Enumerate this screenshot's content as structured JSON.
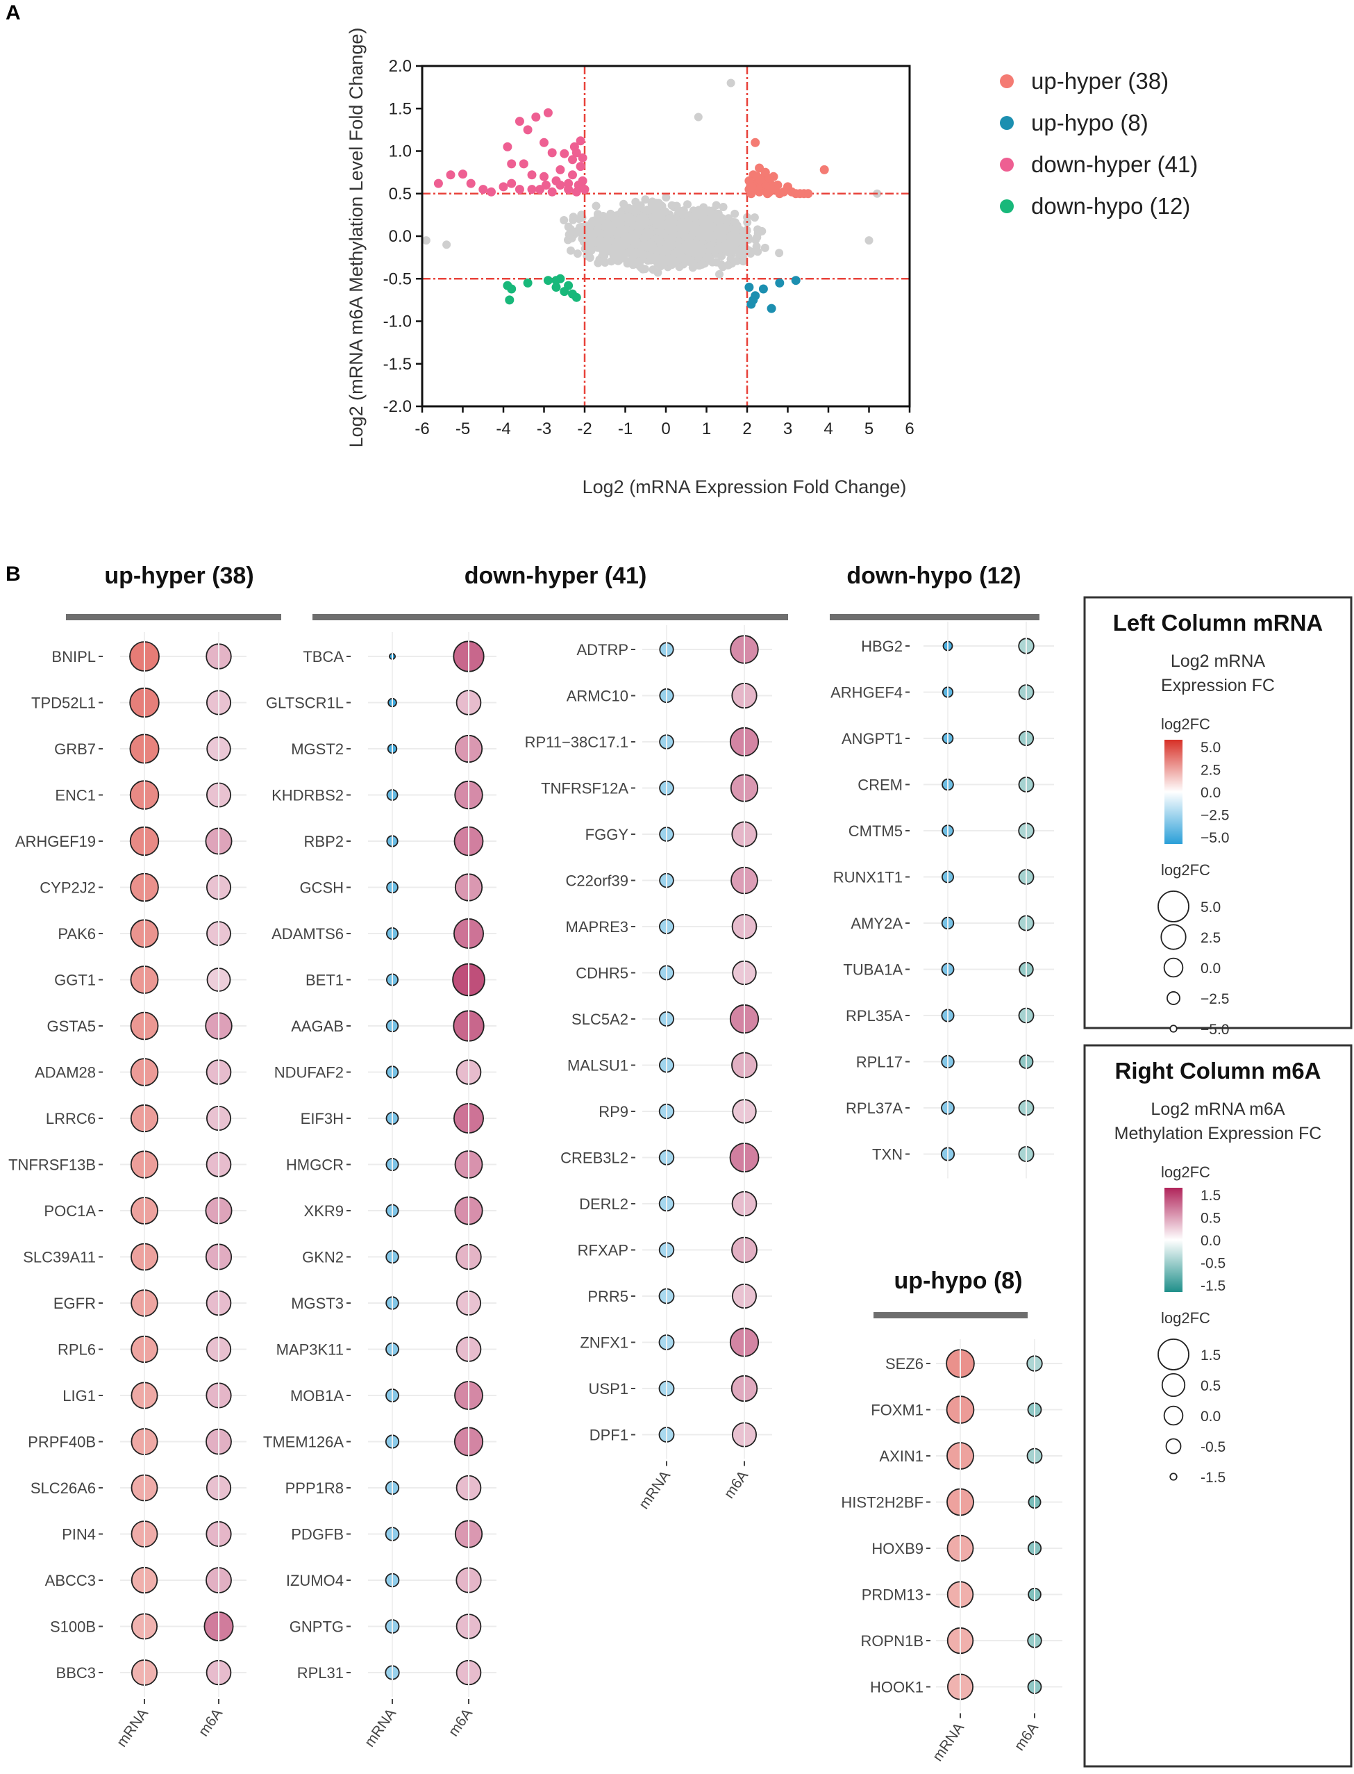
{
  "panel_a": {
    "panel_label": "A",
    "chart_data": {
      "type": "scatter",
      "title": "",
      "xlabel": "Log2 (mRNA Expression Fold Change)",
      "ylabel": "Log2 (mRNA m6A Methylation Level Fold Change)",
      "xlim": [
        -6,
        6
      ],
      "ylim": [
        -2.0,
        2.0
      ],
      "xticks": [
        -6,
        -5,
        -4,
        -3,
        -2,
        -1,
        0,
        1,
        2,
        3,
        4,
        5,
        6
      ],
      "yticks": [
        "2.0",
        "1.5",
        "1.0",
        "0.5",
        "0.0",
        "-0.5",
        "-1.0",
        "-1.5",
        "-2.0"
      ],
      "thresholds": {
        "x": [
          -2,
          2
        ],
        "y": [
          -0.5,
          0.5
        ]
      },
      "background_color": "#cfcfcf",
      "threshold_color": "#e8423a",
      "series": [
        {
          "name": "up-hyper",
          "count": 38,
          "legend": "up-hyper (38)",
          "color": "#f47b73",
          "points": [
            [
              2.05,
              0.55
            ],
            [
              2.1,
              0.6
            ],
            [
              2.15,
              0.72
            ],
            [
              2.2,
              0.62
            ],
            [
              2.25,
              0.55
            ],
            [
              2.3,
              0.8
            ],
            [
              2.35,
              0.68
            ],
            [
              2.4,
              0.58
            ],
            [
              2.45,
              0.75
            ],
            [
              2.5,
              0.65
            ],
            [
              2.55,
              0.52
            ],
            [
              2.6,
              0.6
            ],
            [
              2.2,
              1.1
            ],
            [
              2.4,
              0.55
            ],
            [
              2.7,
              0.55
            ],
            [
              2.8,
              0.5
            ],
            [
              3.0,
              0.58
            ],
            [
              3.1,
              0.52
            ],
            [
              3.2,
              0.5
            ],
            [
              3.4,
              0.5
            ],
            [
              3.5,
              0.5
            ],
            [
              3.9,
              0.78
            ],
            [
              2.1,
              0.5
            ],
            [
              2.3,
              0.52
            ],
            [
              2.5,
              0.5
            ],
            [
              2.05,
              0.65
            ],
            [
              2.15,
              0.55
            ],
            [
              2.35,
              0.6
            ],
            [
              2.65,
              0.7
            ],
            [
              2.9,
              0.52
            ],
            [
              2.25,
              0.7
            ],
            [
              2.45,
              0.62
            ],
            [
              2.55,
              0.68
            ],
            [
              2.75,
              0.6
            ],
            [
              3.3,
              0.5
            ],
            [
              2.12,
              0.58
            ],
            [
              2.32,
              0.66
            ],
            [
              2.6,
              0.55
            ]
          ]
        },
        {
          "name": "up-hypo",
          "count": 8,
          "legend": "up-hypo (8)",
          "color": "#1c8fb0",
          "points": [
            [
              2.05,
              -0.6
            ],
            [
              2.1,
              -0.8
            ],
            [
              2.15,
              -0.75
            ],
            [
              2.2,
              -0.7
            ],
            [
              2.4,
              -0.62
            ],
            [
              2.6,
              -0.85
            ],
            [
              2.8,
              -0.55
            ],
            [
              3.2,
              -0.52
            ]
          ]
        },
        {
          "name": "down-hyper",
          "count": 41,
          "legend": "down-hyper (41)",
          "color": "#ee5f92",
          "points": [
            [
              -5.6,
              0.62
            ],
            [
              -5.3,
              0.72
            ],
            [
              -5.0,
              0.73
            ],
            [
              -4.8,
              0.62
            ],
            [
              -4.5,
              0.55
            ],
            [
              -4.3,
              0.52
            ],
            [
              -4.0,
              0.58
            ],
            [
              -3.9,
              1.05
            ],
            [
              -3.8,
              0.62
            ],
            [
              -3.6,
              1.35
            ],
            [
              -3.5,
              0.85
            ],
            [
              -3.4,
              1.25
            ],
            [
              -3.3,
              0.72
            ],
            [
              -3.2,
              1.4
            ],
            [
              -3.1,
              0.55
            ],
            [
              -3.0,
              1.1
            ],
            [
              -2.95,
              0.6
            ],
            [
              -2.9,
              1.45
            ],
            [
              -2.8,
              0.98
            ],
            [
              -2.7,
              0.65
            ],
            [
              -2.6,
              0.6
            ],
            [
              -2.5,
              0.97
            ],
            [
              -2.4,
              0.55
            ],
            [
              -2.3,
              0.72
            ],
            [
              -2.25,
              1.05
            ],
            [
              -2.2,
              0.98
            ],
            [
              -2.15,
              0.6
            ],
            [
              -2.1,
              1.12
            ],
            [
              -2.05,
              0.65
            ],
            [
              -2.0,
              0.55
            ],
            [
              -3.6,
              0.55
            ],
            [
              -3.0,
              0.7
            ],
            [
              -2.2,
              0.52
            ],
            [
              -2.4,
              0.62
            ],
            [
              -2.8,
              0.52
            ],
            [
              -3.3,
              0.55
            ],
            [
              -2.1,
              0.82
            ],
            [
              -2.3,
              0.9
            ],
            [
              -3.8,
              0.85
            ],
            [
              -2.6,
              0.78
            ],
            [
              -2.05,
              0.92
            ]
          ]
        },
        {
          "name": "down-hypo",
          "count": 12,
          "legend": "down-hypo (12)",
          "color": "#18b87a",
          "points": [
            [
              -3.9,
              -0.58
            ],
            [
              -3.85,
              -0.75
            ],
            [
              -3.4,
              -0.55
            ],
            [
              -2.9,
              -0.52
            ],
            [
              -2.7,
              -0.6
            ],
            [
              -2.6,
              -0.5
            ],
            [
              -2.5,
              -0.65
            ],
            [
              -2.3,
              -0.68
            ],
            [
              -2.2,
              -0.72
            ],
            [
              -2.7,
              -0.52
            ],
            [
              -2.4,
              -0.58
            ],
            [
              -3.8,
              -0.62
            ]
          ]
        }
      ]
    }
  },
  "panel_b": {
    "panel_label": "B",
    "axis_labels": [
      "mRNA",
      "m6A"
    ],
    "chart_data": {
      "type": "bubble-dotplot",
      "groups": [
        {
          "title": "up-hyper (38)",
          "genes": [
            "BNIPL",
            "TPD52L1",
            "GRB7",
            "ENC1",
            "ARHGEF19",
            "CYP2J2",
            "PAK6",
            "GGT1",
            "GSTA5",
            "ADAM28",
            "LRRC6",
            "TNFRSF13B",
            "POC1A",
            "SLC39A11",
            "EGFR",
            "RPL6",
            "LIG1",
            "PRPF40B",
            "SLC26A6",
            "PIN4",
            "ABCC3",
            "S100B",
            "BBC3"
          ],
          "mrna": [
            3.8,
            3.7,
            3.6,
            3.4,
            3.4,
            3.2,
            3.1,
            3.0,
            3.0,
            2.9,
            2.8,
            2.8,
            2.7,
            2.7,
            2.6,
            2.6,
            2.5,
            2.5,
            2.4,
            2.4,
            2.3,
            2.2,
            2.2
          ],
          "m6a": [
            0.62,
            0.5,
            0.45,
            0.5,
            0.75,
            0.5,
            0.48,
            0.4,
            0.78,
            0.55,
            0.5,
            0.55,
            0.75,
            0.68,
            0.55,
            0.52,
            0.6,
            0.65,
            0.52,
            0.6,
            0.65,
            1.08,
            0.55
          ]
        },
        {
          "title": "down-hyper (41)",
          "genes": [
            "TBCA",
            "GLTSCR1L",
            "MGST2",
            "KHDRBS2",
            "RBP2",
            "GCSH",
            "ADAMTS6",
            "BET1",
            "AAGAB",
            "NDUFAF2",
            "EIF3H",
            "HMGCR",
            "XKR9",
            "GKN2",
            "MGST3",
            "MAP3K11",
            "MOB1A",
            "TMEM126A",
            "PPP1R8",
            "PDGFB",
            "IZUMO4",
            "GNPTG",
            "RPL31"
          ],
          "mrna": [
            -5.5,
            -4.5,
            -4.3,
            -3.6,
            -3.5,
            -3.4,
            -3.3,
            -3.3,
            -3.2,
            -3.2,
            -3.1,
            -3.0,
            -3.0,
            -2.9,
            -2.9,
            -2.8,
            -2.8,
            -2.7,
            -2.7,
            -2.6,
            -2.6,
            -2.5,
            -2.4
          ],
          "m6a": [
            1.25,
            0.55,
            0.85,
            0.95,
            1.05,
            0.85,
            1.15,
            1.45,
            1.25,
            0.55,
            1.15,
            0.9,
            0.92,
            0.62,
            0.5,
            0.55,
            0.98,
            1.0,
            0.55,
            0.85,
            0.6,
            0.55,
            0.55
          ]
        },
        {
          "title": "",
          "genes": [
            "ADTRP",
            "ARMC10",
            "RP11−38C17.1",
            "TNFRSF12A",
            "FGGY",
            "C22orf39",
            "MAPRE3",
            "CDHR5",
            "SLC5A2",
            "MALSU1",
            "RP9",
            "CREB3L2",
            "DERL2",
            "RFXAP",
            "PRR5",
            "ZNFX1",
            "USP1",
            "DPF1"
          ],
          "mrna": [
            -2.4,
            -2.4,
            -2.3,
            -2.3,
            -2.3,
            -2.3,
            -2.2,
            -2.2,
            -2.2,
            -2.2,
            -2.1,
            -2.1,
            -2.1,
            -2.1,
            -2.0,
            -2.0,
            -2.0,
            -2.0
          ],
          "m6a": [
            0.95,
            0.6,
            1.0,
            0.85,
            0.6,
            0.8,
            0.55,
            0.45,
            1.0,
            0.65,
            0.45,
            1.05,
            0.55,
            0.65,
            0.5,
            1.0,
            0.7,
            0.5
          ]
        },
        {
          "title": "down-hypo (12)",
          "genes": [
            "HBG2",
            "ARHGEF4",
            "ANGPT1",
            "CREM",
            "CMTM5",
            "RUNX1T1",
            "AMY2A",
            "TUBA1A",
            "RPL35A",
            "RPL17",
            "RPL37A",
            "TXN"
          ],
          "mrna": [
            -4.2,
            -3.8,
            -3.7,
            -3.4,
            -3.4,
            -3.3,
            -3.2,
            -3.1,
            -3.0,
            -2.9,
            -2.8,
            -2.7
          ],
          "m6a": [
            -0.55,
            -0.6,
            -0.65,
            -0.6,
            -0.55,
            -0.6,
            -0.58,
            -0.7,
            -0.6,
            -0.75,
            -0.6,
            -0.58
          ]
        },
        {
          "title": "up-hypo (8)",
          "genes": [
            "SEZ6",
            "FOXM1",
            "AXIN1",
            "HIST2H2BF",
            "HOXB9",
            "PRDM13",
            "ROPN1B",
            "HOOK1"
          ],
          "mrna": [
            3.2,
            2.9,
            2.7,
            2.7,
            2.4,
            2.3,
            2.3,
            2.2
          ],
          "m6a": [
            -0.55,
            -0.75,
            -0.6,
            -0.9,
            -0.8,
            -0.85,
            -0.7,
            -0.75
          ]
        }
      ],
      "legend_mrna": {
        "heading": "Left Column mRNA",
        "subtitle_line1": "Log2 mRNA",
        "subtitle_line2": "Expression FC",
        "scale_title": "log2FC",
        "color_ticks": [
          "5.0",
          "2.5",
          "0.0",
          "−2.5",
          "−5.0"
        ],
        "color_range": [
          -5,
          6
        ],
        "colors": {
          "low": "#2a9fd8",
          "mid": "#ffffff",
          "high": "#d73027"
        },
        "size_title": "log2FC",
        "size_ticks": [
          "5.0",
          "2.5",
          "0.0",
          "−2.5",
          "−5.0"
        ],
        "size_values": [
          5,
          2.5,
          0,
          -2.5,
          -5
        ]
      },
      "legend_m6a": {
        "heading": "Right Column m6A",
        "subtitle_line1": "Log2 mRNA m6A",
        "subtitle_line2": "Methylation Expression FC",
        "scale_title": "log2FC",
        "color_ticks": [
          "1.5",
          "0.5",
          "0.0",
          "-0.5",
          "-1.5"
        ],
        "color_range": [
          -1.5,
          1.8
        ],
        "colors": {
          "low": "#1f8f8a",
          "mid": "#ffffff",
          "high": "#b0245a"
        },
        "size_title": "log2FC",
        "size_ticks": [
          "1.5",
          "0.5",
          "0.0",
          "-0.5",
          "-1.5"
        ],
        "size_values": [
          1.5,
          0.5,
          0,
          -0.5,
          -1.5
        ]
      }
    }
  }
}
